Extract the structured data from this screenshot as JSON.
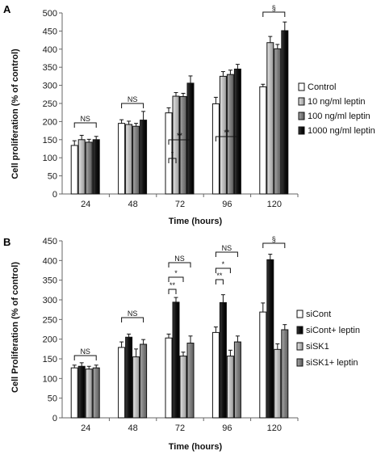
{
  "chart_data": [
    {
      "panel_label": "A",
      "type": "bar",
      "categories": [
        "24",
        "48",
        "72",
        "96",
        "120"
      ],
      "xlabel": "Time (hours)",
      "ylabel": "Cell proliferation (% of control)",
      "ylim": [
        0,
        500
      ],
      "yticks": [
        0,
        50,
        100,
        150,
        200,
        250,
        300,
        350,
        400,
        450,
        500
      ],
      "legend_position": "right",
      "series": [
        {
          "name": "Control",
          "color": "#ffffff",
          "values": [
            134,
            195,
            224,
            249,
            296
          ],
          "errors": [
            13,
            10,
            14,
            18,
            7
          ]
        },
        {
          "name": "10 ng/ml leptin",
          "color": "#c8c8c8",
          "values": [
            150,
            192,
            270,
            325,
            418
          ],
          "errors": [
            12,
            9,
            10,
            13,
            17
          ]
        },
        {
          "name": "100 ng/ml leptin",
          "color": "#8a8a8a",
          "values": [
            143,
            187,
            269,
            330,
            401
          ],
          "errors": [
            8,
            8,
            9,
            12,
            12
          ]
        },
        {
          "name": "1000 ng/ml leptin",
          "color": "#141414",
          "values": [
            150,
            204,
            306,
            345,
            451
          ],
          "errors": [
            9,
            24,
            20,
            13,
            24
          ]
        }
      ],
      "annotations": [
        {
          "category": 0,
          "label": "NS"
        },
        {
          "category": 1,
          "label": "NS"
        },
        {
          "category": 2,
          "label": "*"
        },
        {
          "category": 2,
          "label": "**"
        },
        {
          "category": 3,
          "label": "**"
        },
        {
          "category": 4,
          "label": "§"
        }
      ]
    },
    {
      "panel_label": "B",
      "type": "bar",
      "categories": [
        "24",
        "48",
        "72",
        "96",
        "120"
      ],
      "xlabel": "Time (hours)",
      "ylabel": "Cell Proliferation (% of control)",
      "ylim": [
        0,
        450
      ],
      "yticks": [
        0,
        50,
        100,
        150,
        200,
        250,
        300,
        350,
        400,
        450
      ],
      "legend_position": "right",
      "series": [
        {
          "name": "siCont",
          "color": "#ffffff",
          "values": [
            127,
            179,
            203,
            217,
            269
          ],
          "errors": [
            7,
            14,
            10,
            14,
            23
          ]
        },
        {
          "name": "siCont+ leptin",
          "color": "#141414",
          "values": [
            131,
            205,
            294,
            293,
            402
          ],
          "errors": [
            9,
            8,
            12,
            20,
            14
          ]
        },
        {
          "name": "siSK1",
          "color": "#d0d0d0",
          "values": [
            124,
            155,
            157,
            157,
            174
          ],
          "errors": [
            7,
            20,
            10,
            15,
            14
          ]
        },
        {
          "name": "siSK1+ leptin",
          "color": "#707070",
          "values": [
            127,
            187,
            190,
            193,
            224
          ],
          "errors": [
            7,
            12,
            18,
            15,
            13
          ]
        }
      ],
      "annotations": [
        {
          "category": 0,
          "label": "NS"
        },
        {
          "category": 1,
          "label": "NS"
        },
        {
          "category": 2,
          "label": "NS"
        },
        {
          "category": 2,
          "label": "*"
        },
        {
          "category": 2,
          "label": "**"
        },
        {
          "category": 3,
          "label": "NS"
        },
        {
          "category": 3,
          "label": "*"
        },
        {
          "category": 3,
          "label": "**"
        },
        {
          "category": 4,
          "label": "§"
        }
      ]
    }
  ]
}
